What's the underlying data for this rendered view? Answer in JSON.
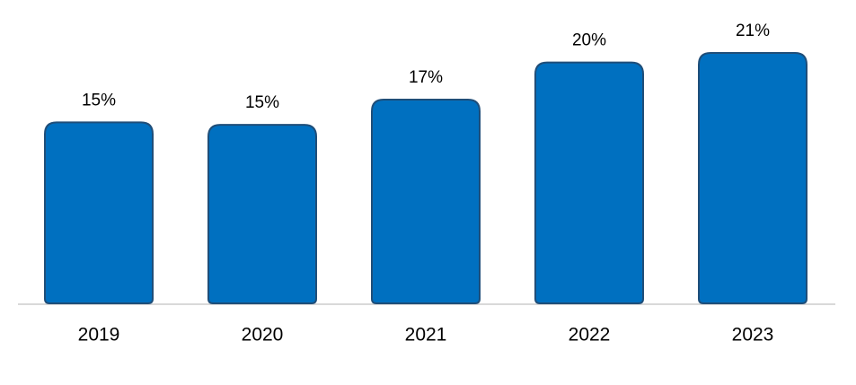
{
  "chart_data": {
    "type": "bar",
    "categories": [
      "2019",
      "2020",
      "2021",
      "2022",
      "2023"
    ],
    "values": [
      15.1,
      14.9,
      17,
      20.1,
      20.9
    ],
    "value_labels": [
      "15%",
      "15%",
      "17%",
      "20%",
      "21%"
    ],
    "color": "#0070c0"
  }
}
